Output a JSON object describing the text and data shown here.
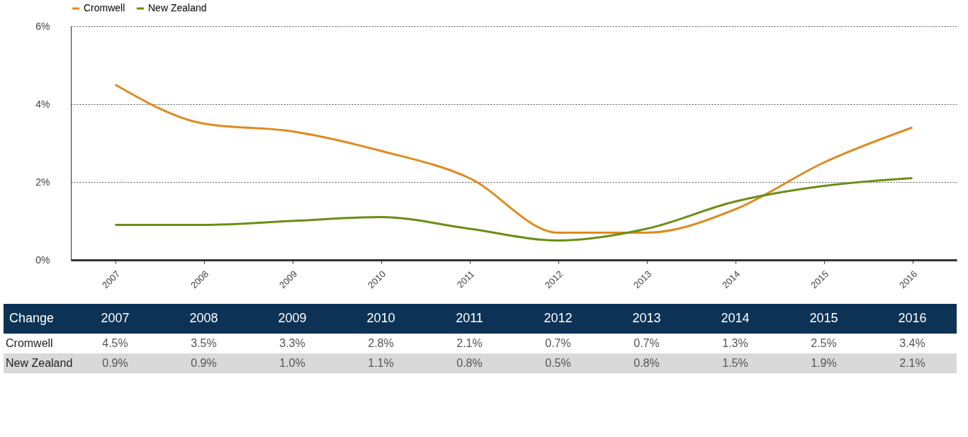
{
  "chart_data": {
    "type": "line",
    "categories": [
      "2007",
      "2008",
      "2009",
      "2010",
      "2011",
      "2012",
      "2013",
      "2014",
      "2015",
      "2016"
    ],
    "series": [
      {
        "name": "Cromwell",
        "color": "#e08a1e",
        "values": [
          4.5,
          3.5,
          3.3,
          2.8,
          2.1,
          0.7,
          0.7,
          1.3,
          2.5,
          3.4
        ],
        "value_labels": [
          "4.5%",
          "3.5%",
          "3.3%",
          "2.8%",
          "2.1%",
          "0.7%",
          "0.7%",
          "1.3%",
          "2.5%",
          "3.4%"
        ]
      },
      {
        "name": "New Zealand",
        "color": "#6b8e14",
        "values": [
          0.9,
          0.9,
          1.0,
          1.1,
          0.8,
          0.5,
          0.8,
          1.5,
          1.9,
          2.1
        ],
        "value_labels": [
          "0.9%",
          "0.9%",
          "1.0%",
          "1.1%",
          "0.8%",
          "0.5%",
          "0.8%",
          "1.5%",
          "1.9%",
          "2.1%"
        ]
      }
    ],
    "ylim": [
      0,
      6
    ],
    "yticks": [
      {
        "value": 0,
        "label": "0%"
      },
      {
        "value": 2,
        "label": "2%"
      },
      {
        "value": 4,
        "label": "4%"
      },
      {
        "value": 6,
        "label": "6%"
      }
    ],
    "grid": "y",
    "legend": "top",
    "marker": "none",
    "line_style": "solid",
    "annotations": [
      "Change"
    ]
  }
}
